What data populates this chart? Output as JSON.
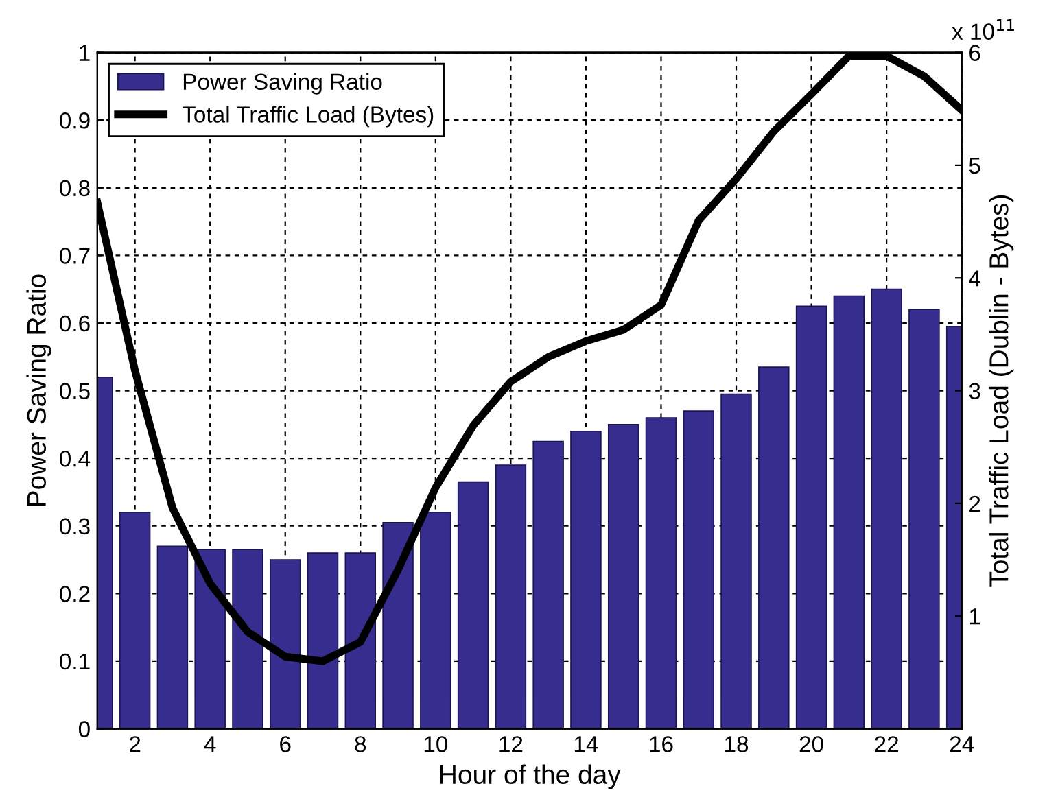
{
  "chart_data": {
    "type": "bar",
    "xlabel": "Hour of the day",
    "ylabel": "Power Saving Ratio",
    "y2label": "Total Traffic Load (Dublin - Bytes)",
    "x": [
      1,
      2,
      3,
      4,
      5,
      6,
      7,
      8,
      9,
      10,
      11,
      12,
      13,
      14,
      15,
      16,
      17,
      18,
      19,
      20,
      21,
      22,
      23,
      24
    ],
    "series": [
      {
        "name": "Power Saving Ratio",
        "color": "#372d8e",
        "values": [
          0.52,
          0.32,
          0.27,
          0.265,
          0.265,
          0.25,
          0.26,
          0.26,
          0.305,
          0.32,
          0.365,
          0.39,
          0.425,
          0.44,
          0.45,
          0.46,
          0.47,
          0.495,
          0.535,
          0.625,
          0.64,
          0.65,
          0.62,
          0.595
        ]
      },
      {
        "name": "Total Traffic Load (Bytes)",
        "type": "line",
        "axis": "y2",
        "color": "#000000",
        "values": [
          4.67,
          3.18,
          1.96,
          1.29,
          0.86,
          0.64,
          0.6,
          0.77,
          1.41,
          2.14,
          2.69,
          3.08,
          3.3,
          3.44,
          3.54,
          3.76,
          4.51,
          4.88,
          5.3,
          5.63,
          5.97,
          5.97,
          5.79,
          5.49
        ]
      }
    ],
    "xlim": [
      1,
      24
    ],
    "xticks": [
      2,
      4,
      6,
      8,
      10,
      12,
      14,
      16,
      18,
      20,
      22,
      24
    ],
    "ylim": [
      0,
      1
    ],
    "yticks": [
      0,
      0.1,
      0.2,
      0.3,
      0.4,
      0.5,
      0.6,
      0.7,
      0.8,
      0.9,
      1
    ],
    "y2lim": [
      0,
      6
    ],
    "y2ticks": [
      1,
      2,
      3,
      4,
      5,
      6
    ],
    "annotations": [
      "x 10$^{11}$"
    ],
    "grid": true,
    "line_style": "solid",
    "legend": "top left"
  }
}
